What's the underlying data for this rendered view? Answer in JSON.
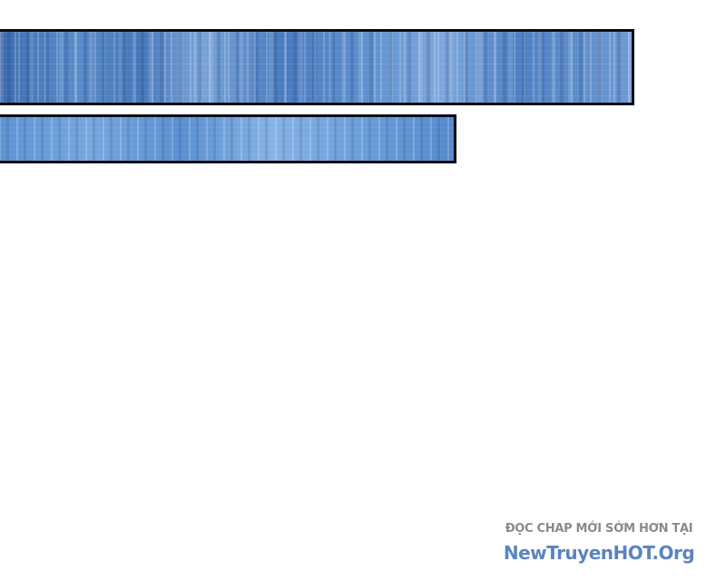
{
  "panels": [
    {
      "id": "panel-1",
      "content": "blue striped texture"
    },
    {
      "id": "panel-2",
      "content": "blue striped texture"
    }
  ],
  "watermark": {
    "line1": "ĐỌC CHAP MỚI SỚM HƠN TẠI",
    "line2": "NewTruyenHOT.Org"
  },
  "colors": {
    "panel_blue": "#5b8bc9",
    "border": "#0b0d14",
    "watermark_gray": "#8a8a8a",
    "watermark_blue": "#5b84bf"
  }
}
